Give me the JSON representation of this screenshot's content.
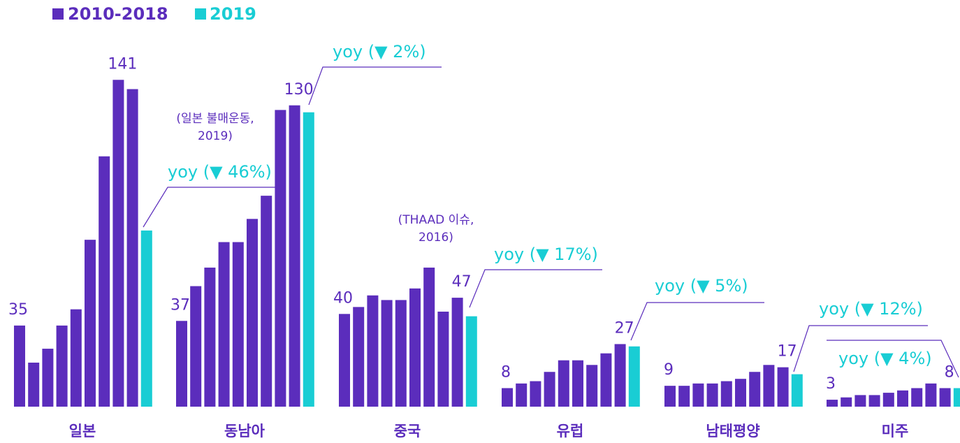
{
  "chart_data": {
    "type": "bar",
    "categories": [
      "일본",
      "동남아",
      "중국",
      "유럽",
      "남태평양",
      "미주"
    ],
    "series": [
      {
        "name": "2010-2018",
        "color": "#5b2dbc",
        "values": [
          [
            35,
            19,
            25,
            35,
            42,
            72,
            108,
            141,
            137
          ],
          [
            37,
            52,
            60,
            71,
            71,
            81,
            91,
            128,
            130
          ],
          [
            40,
            43,
            48,
            46,
            46,
            51,
            60,
            41,
            47
          ],
          [
            8,
            10,
            11,
            15,
            20,
            20,
            18,
            23,
            27
          ],
          [
            9,
            9,
            10,
            10,
            11,
            12,
            15,
            18,
            17
          ],
          [
            3,
            4,
            5,
            5,
            6,
            7,
            8,
            10,
            8
          ]
        ]
      },
      {
        "name": "2019",
        "color": "#19cdd4",
        "values": [
          76,
          127,
          39,
          26,
          14,
          8
        ]
      }
    ],
    "ylim": [
      0,
      145
    ],
    "annotations": [
      "yoy (▼ 46%)",
      "yoy (▼ 2%)",
      "yoy (▼ 17%)",
      "yoy (▼ 5%)",
      "yoy (▼ 12%)",
      "yoy (▼ 4%)"
    ],
    "notes": [
      [
        "(일본 불매운동,",
        "2019)"
      ],
      [
        "(THAAD 이슈,",
        "2016)"
      ]
    ]
  }
}
